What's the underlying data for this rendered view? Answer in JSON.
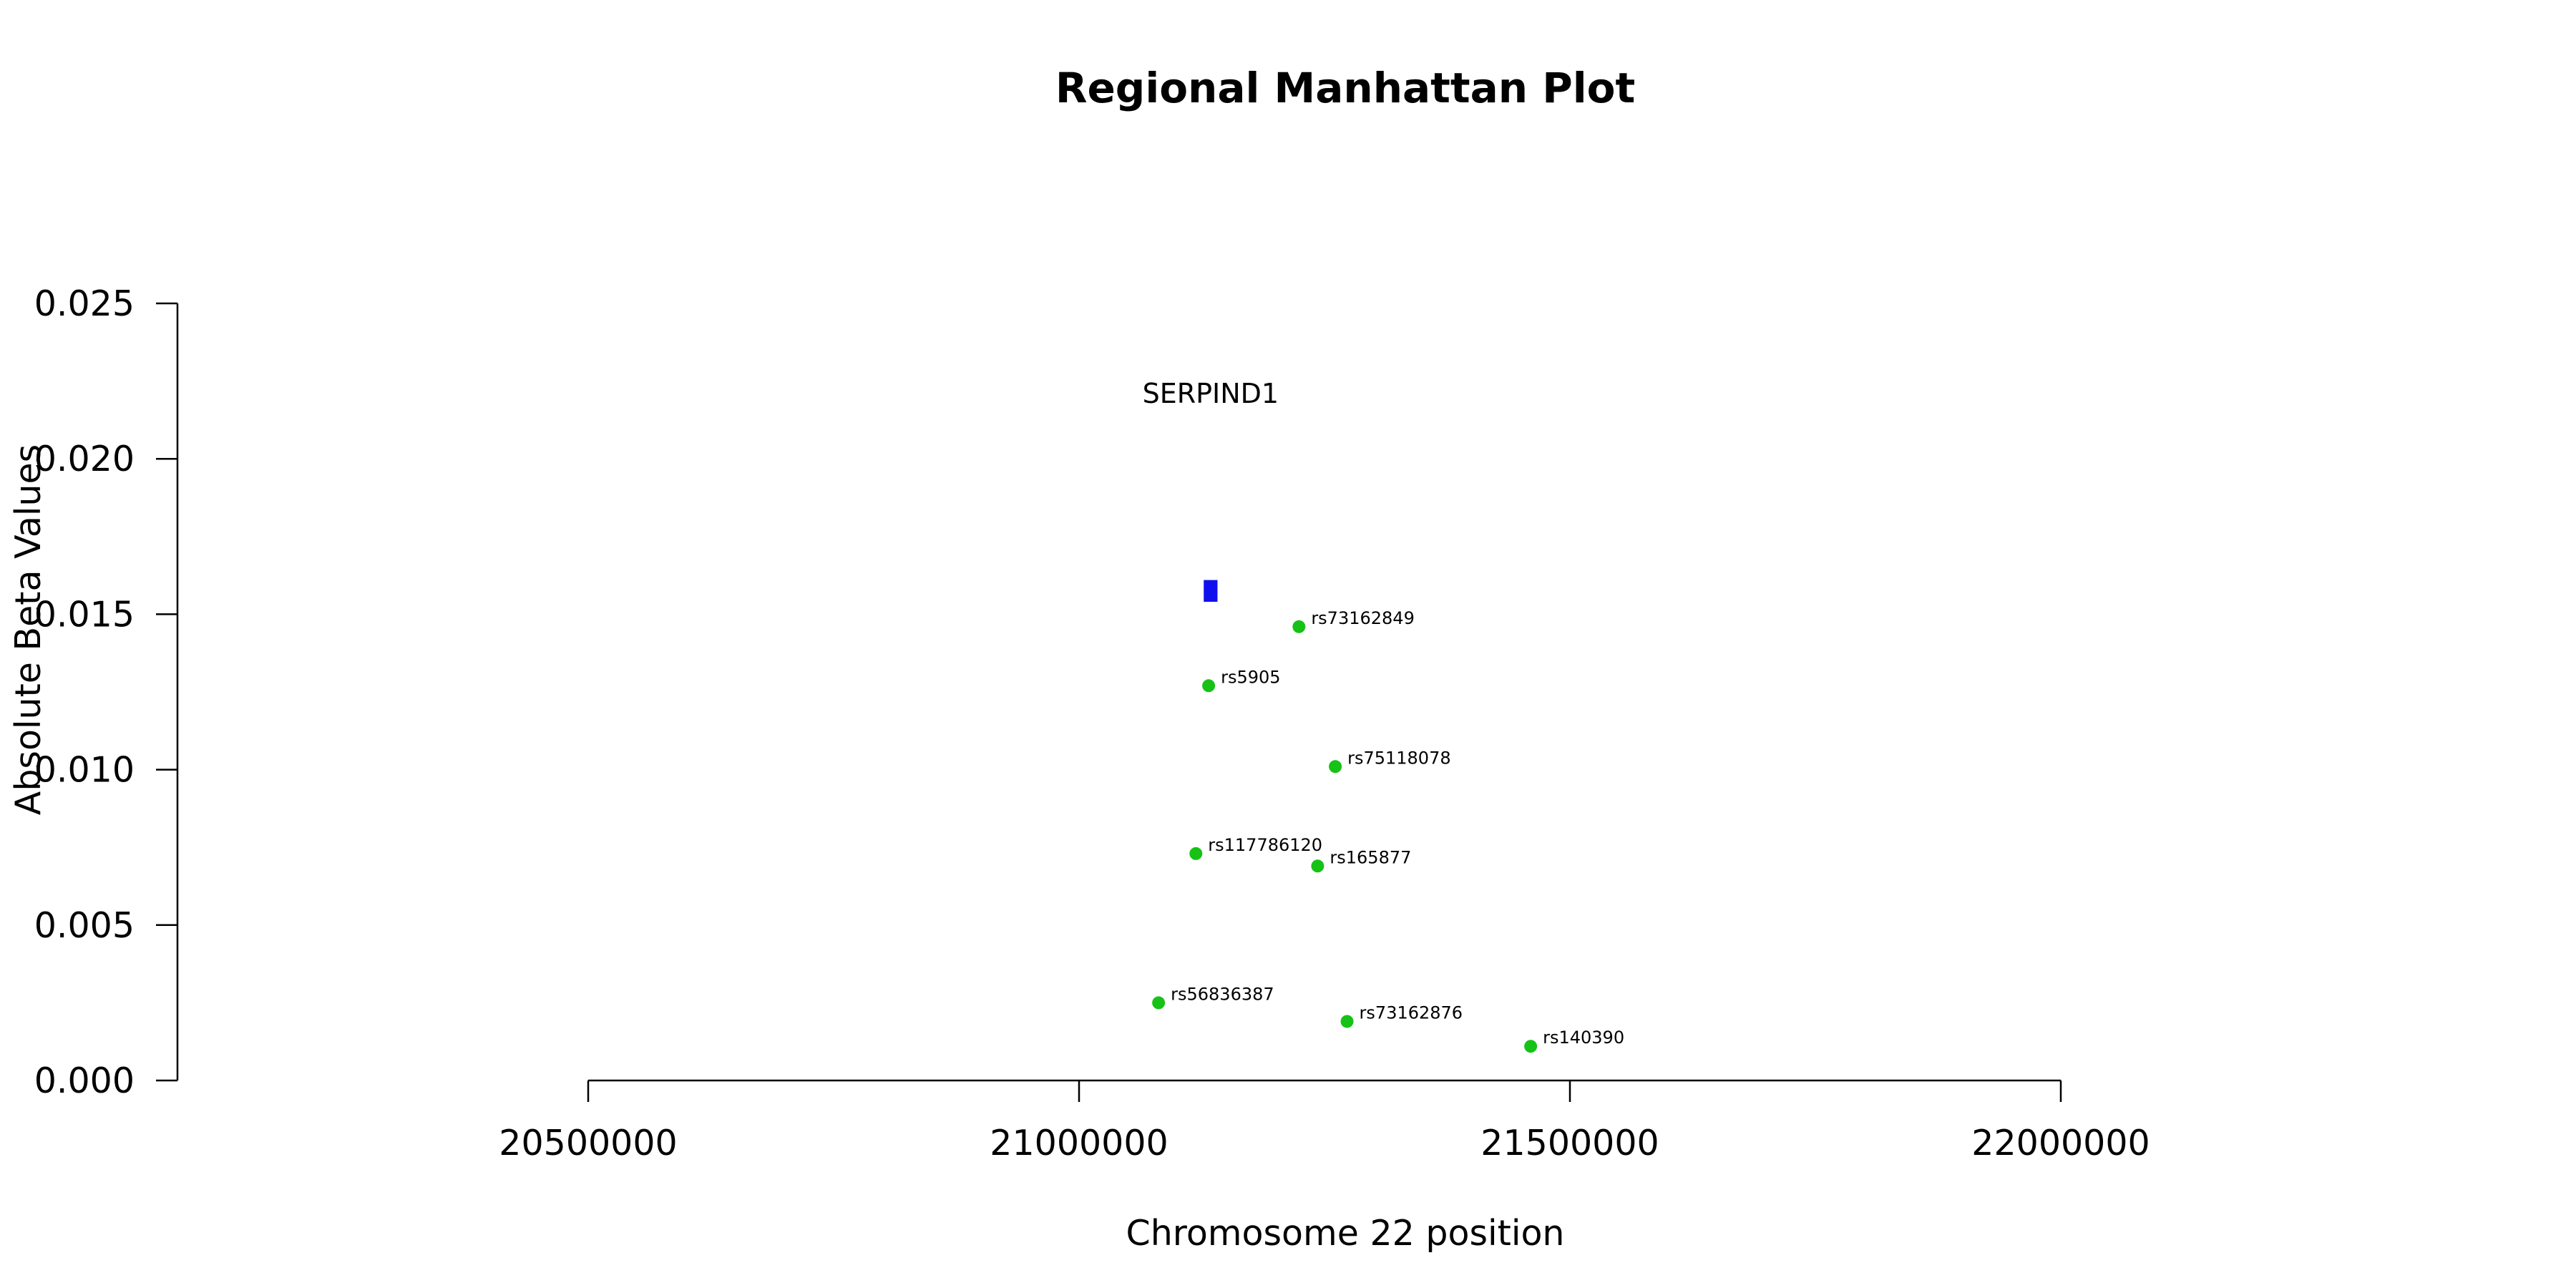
{
  "chart_data": {
    "type": "scatter",
    "title": "Regional Manhattan Plot",
    "xlabel": "Chromosome 22 position",
    "ylabel": "Absolute Beta Values",
    "xlim": [
      20500000,
      22000000
    ],
    "ylim": [
      0.0,
      0.025
    ],
    "x_ticks": [
      20500000,
      21000000,
      21500000,
      22000000
    ],
    "x_tick_labels": [
      "20500000",
      "21000000",
      "21500000",
      "22000000"
    ],
    "y_ticks": [
      0.0,
      0.005,
      0.01,
      0.015,
      0.02,
      0.025
    ],
    "y_tick_labels": [
      "0.000",
      "0.005",
      "0.010",
      "0.015",
      "0.020",
      "0.025"
    ],
    "grid": false,
    "point_color": "#16c216",
    "gene_color": "#1010ee",
    "gene": {
      "name": "SERPIND1",
      "start": 21127000,
      "end": 21141000,
      "y_bottom": 0.0154,
      "y_top": 0.0161,
      "label_y": 0.0221
    },
    "points": [
      {
        "x": 21224000,
        "y": 0.0146,
        "label": "rs73162849"
      },
      {
        "x": 21132000,
        "y": 0.0127,
        "label": "rs5905"
      },
      {
        "x": 21261000,
        "y": 0.0101,
        "label": "rs75118078"
      },
      {
        "x": 21119000,
        "y": 0.0073,
        "label": "rs117786120"
      },
      {
        "x": 21243000,
        "y": 0.0069,
        "label": "rs165877"
      },
      {
        "x": 21081000,
        "y": 0.0025,
        "label": "rs56836387"
      },
      {
        "x": 21273000,
        "y": 0.0019,
        "label": "rs73162876"
      },
      {
        "x": 21460000,
        "y": 0.0011,
        "label": "rs140390"
      }
    ]
  }
}
